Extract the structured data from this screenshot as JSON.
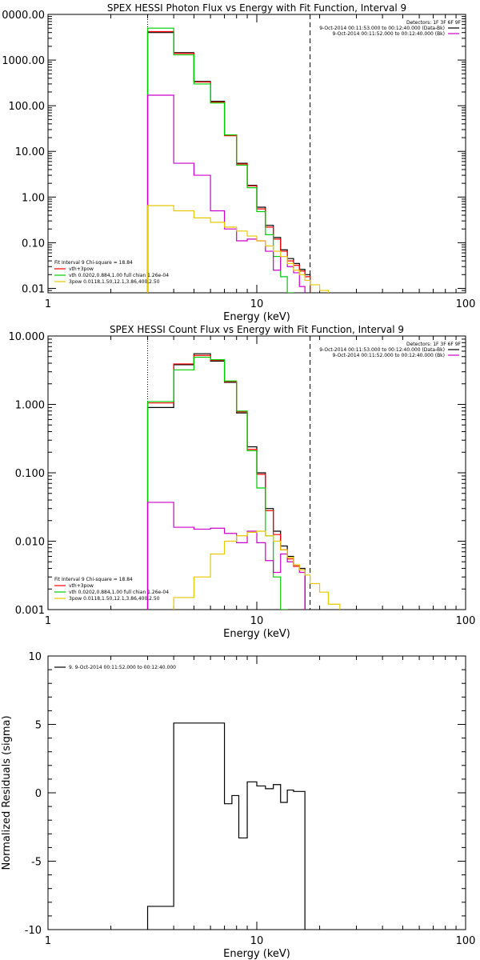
{
  "chart_data": [
    {
      "type": "line",
      "title": "SPEX HESSI Photon Flux vs Energy with Fit Function, Interval 9",
      "xlabel": "Energy (keV)",
      "ylabel": "",
      "xlim": [
        1,
        100
      ],
      "ylim": [
        0.008,
        10000
      ],
      "xscale": "log",
      "yscale": "log",
      "x_ticks": [
        "1",
        "10",
        "100"
      ],
      "y_ticks": [
        "0.01",
        "0.10",
        "1.00",
        "10.00",
        "100.00",
        "1000.00",
        "0000.00"
      ],
      "bin_edges": [
        3.0,
        4.0,
        5.0,
        6.0,
        7.0,
        8.0,
        9.0,
        10.0,
        11.0,
        12.0,
        13.0,
        14.0,
        15.0,
        16.0,
        17.0,
        18.0,
        20.0,
        22.0
      ],
      "vlines": [
        {
          "x": 3.0,
          "style": "dotted"
        },
        {
          "x": 18.0,
          "style": "dashed"
        }
      ],
      "header": [
        {
          "text": "Detectors: 1F 3F 6F 9F",
          "color": ""
        },
        {
          "text": "9-Oct-2014 00:11:53.000 to 00:12:40.000 (Data-Bk)",
          "color": "#000000"
        },
        {
          "text": "9-Oct-2014 00:11:52.000 to 00:12:40.000 (Bk)",
          "color": "#cc00cc"
        }
      ],
      "legend": [
        {
          "text": "Fit Interval 9   Chi-square = 18.84",
          "color": ""
        },
        {
          "text": "vth+3pow",
          "color": "#ff0000"
        },
        {
          "text": "vth 0.0202,0.884,1.00  full chian 1.26e-04",
          "color": "#00cc00"
        },
        {
          "text": "3pow 0.0118,1.50,12.1,3.86,400,2.50",
          "color": "#e6c800"
        }
      ],
      "series": [
        {
          "color": "#000000",
          "values": [
            4000,
            1450,
            340,
            125,
            23,
            5.5,
            1.8,
            0.6,
            0.24,
            0.13,
            0.07,
            0.045,
            0.035,
            0.026,
            0.02
          ]
        },
        {
          "color": "#ff0000",
          "values": [
            4200,
            1400,
            330,
            120,
            22,
            5.3,
            1.75,
            0.55,
            0.22,
            0.12,
            0.065,
            0.04,
            0.032,
            0.024,
            0.018
          ]
        },
        {
          "color": "#00cc00",
          "values": [
            5000,
            1300,
            300,
            115,
            23,
            5.0,
            1.6,
            0.48,
            0.15,
            0.05,
            0.018,
            0.008
          ]
        },
        {
          "color": "#cc00cc",
          "values": [
            170,
            5.5,
            3.0,
            0.5,
            0.2,
            0.11,
            0.12,
            0.11,
            0.065,
            0.025,
            0.05,
            0.03,
            0.022,
            0.011,
            0.006
          ]
        },
        {
          "color": "#e6c800",
          "values": [
            0.65,
            0.5,
            0.35,
            0.28,
            0.22,
            0.18,
            0.14,
            0.11,
            0.085,
            0.065,
            0.05,
            0.035,
            0.025,
            0.02,
            0.015,
            0.012,
            0.009
          ]
        }
      ]
    },
    {
      "type": "line",
      "title": "SPEX HESSI Count Flux vs Energy with Fit Function, Interval 9",
      "xlabel": "Energy (keV)",
      "ylabel": "",
      "xlim": [
        1,
        100
      ],
      "ylim": [
        0.001,
        10
      ],
      "xscale": "log",
      "yscale": "log",
      "x_ticks": [
        "1",
        "10",
        "100"
      ],
      "y_ticks": [
        "0.001",
        "0.010",
        "0.100",
        "1.000",
        "10.000"
      ],
      "bin_edges": [
        3.0,
        4.0,
        5.0,
        6.0,
        7.0,
        8.0,
        9.0,
        10.0,
        11.0,
        12.0,
        13.0,
        14.0,
        15.0,
        16.0,
        17.0,
        18.0,
        20.0,
        22.0,
        25.0
      ],
      "vlines": [
        {
          "x": 3.0,
          "style": "dotted"
        },
        {
          "x": 18.0,
          "style": "dashed"
        }
      ],
      "header": [
        {
          "text": "Detectors: 1F 3F 6F 9F",
          "color": ""
        },
        {
          "text": "9-Oct-2014 00:11:53.000 to 00:12:40.000 (Data-Bk)",
          "color": "#000000"
        },
        {
          "text": "9-Oct-2014 00:11:52.000 to 00:12:40.000 (Bk)",
          "color": "#cc00cc"
        }
      ],
      "legend": [
        {
          "text": "Fit Interval 9   Chi-square = 18.84",
          "color": ""
        },
        {
          "text": "vth+3pow",
          "color": "#ff0000"
        },
        {
          "text": "vth 0.0202,0.884,1.00  full chian 1.26e-04",
          "color": "#00cc00"
        },
        {
          "text": "3pow 0.0118,1.50,12.1,3.86,400,2.50",
          "color": "#e6c800"
        }
      ],
      "series": [
        {
          "color": "#000000",
          "values": [
            0.9,
            3.8,
            5.5,
            4.3,
            2.1,
            0.75,
            0.24,
            0.1,
            0.03,
            0.014,
            0.0085,
            0.006,
            0.0045,
            0.004
          ]
        },
        {
          "color": "#ff0000",
          "values": [
            1.05,
            3.9,
            5.2,
            4.4,
            2.15,
            0.78,
            0.22,
            0.095,
            0.028,
            0.0125,
            0.0075,
            0.0055,
            0.0043,
            0.0038
          ]
        },
        {
          "color": "#00cc00",
          "values": [
            1.1,
            3.2,
            4.9,
            4.5,
            2.2,
            0.8,
            0.21,
            0.06,
            0.012,
            0.003,
            0.001
          ]
        },
        {
          "color": "#cc00cc",
          "values": [
            0.037,
            0.016,
            0.015,
            0.0155,
            0.013,
            0.0095,
            0.014,
            0.0095,
            0.0052,
            0.0035,
            0.0065,
            0.005,
            0.0045,
            0.0035
          ]
        },
        {
          "color": "#e6c800",
          "values": [
            0.0008,
            0.0015,
            0.003,
            0.0065,
            0.01,
            0.012,
            0.0135,
            0.014,
            0.012,
            0.01,
            0.0075,
            0.0058,
            0.0045,
            0.0038,
            0.0032,
            0.0024,
            0.0018,
            0.0012
          ]
        }
      ]
    },
    {
      "type": "line",
      "title": "",
      "xlabel": "Energy (keV)",
      "ylabel": "Normalized Residuals (sigma)",
      "xlim": [
        1,
        100
      ],
      "ylim": [
        -10,
        10
      ],
      "xscale": "log",
      "yscale": "linear",
      "x_ticks": [
        "1",
        "10",
        "100"
      ],
      "y_ticks": [
        "-10",
        "-5",
        "0",
        "5",
        "10"
      ],
      "bin_edges": [
        3.0,
        4.0,
        5.0,
        6.0,
        7.0,
        8.0,
        9.0,
        10.0,
        11.0,
        12.0,
        13.0,
        14.0,
        15.0,
        16.0,
        17.0,
        18.0
      ],
      "legend": [
        {
          "text": "9. 9-Oct-2014 00:11:52.000 to 00:12:40.000",
          "color": "#000000"
        }
      ],
      "series": [
        {
          "color": "#000000",
          "values": [
            -8.3,
            5.1,
            5.1,
            -0.8,
            -0.2,
            -3.3,
            0.8,
            0.5,
            0.3,
            0.6,
            -0.7,
            0.2,
            0.1
          ]
        }
      ],
      "residual_edges": [
        3.0,
        4.0,
        6.0,
        7.0,
        7.6,
        8.2,
        9.0,
        10.0,
        11.0,
        12.0,
        13.0,
        14.0,
        15.0,
        17.0
      ]
    }
  ]
}
